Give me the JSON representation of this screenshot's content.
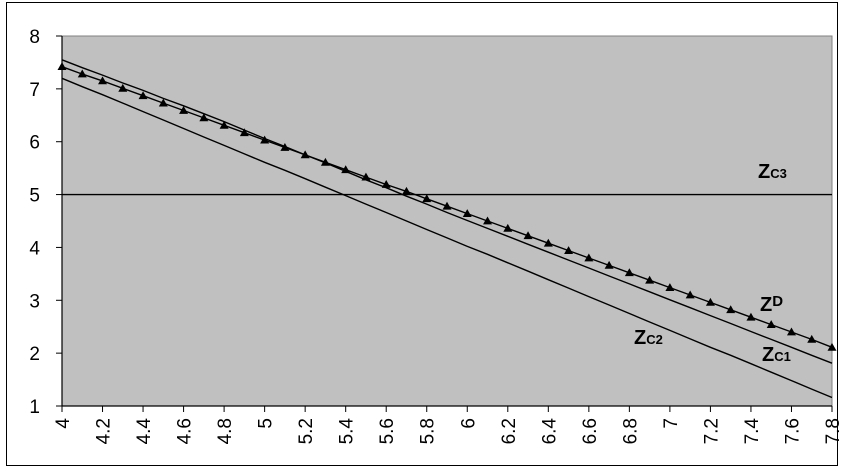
{
  "chart_data": {
    "type": "line",
    "title": "",
    "xlabel": "",
    "ylabel": "",
    "xlim": [
      4,
      7.8
    ],
    "ylim": [
      1,
      8
    ],
    "y_ticks": [
      "1",
      "2",
      "3",
      "4",
      "5",
      "6",
      "7",
      "8"
    ],
    "x_ticks": [
      "4",
      "4.2",
      "4.4",
      "4.6",
      "4.8",
      "5",
      "5.2",
      "5.4",
      "5.6",
      "5.8",
      "6",
      "6.2",
      "6.4",
      "6.6",
      "6.8",
      "7",
      "7.2",
      "7.4",
      "7.6",
      "7.8"
    ],
    "grid": false,
    "plot_background": "#C0C0C0",
    "line_color": "#000000",
    "x": [
      4.0,
      4.1,
      4.2,
      4.3,
      4.4,
      4.5,
      4.6,
      4.7,
      4.8,
      4.9,
      5.0,
      5.1,
      5.2,
      5.3,
      5.4,
      5.5,
      5.6,
      5.7,
      5.8,
      5.9,
      6.0,
      6.1,
      6.2,
      6.3,
      6.4,
      6.5,
      6.6,
      6.7,
      6.8,
      6.9,
      7.0,
      7.1,
      7.2,
      7.3,
      7.4,
      7.5,
      7.6,
      7.7,
      7.8
    ],
    "series": [
      {
        "name": "ZD",
        "label_main": "Z",
        "label_sub": "D",
        "marker": "triangle",
        "values": [
          7.42,
          7.28,
          7.15,
          7.01,
          6.87,
          6.73,
          6.59,
          6.45,
          6.31,
          6.17,
          6.03,
          5.89,
          5.75,
          5.61,
          5.47,
          5.33,
          5.19,
          5.06,
          4.92,
          4.78,
          4.64,
          4.5,
          4.36,
          4.22,
          4.08,
          3.94,
          3.8,
          3.66,
          3.52,
          3.38,
          3.24,
          3.1,
          2.96,
          2.82,
          2.68,
          2.54,
          2.4,
          2.26,
          2.11
        ]
      },
      {
        "name": "ZC1",
        "label_main": "Z",
        "label_sub": "C1",
        "marker": "none",
        "values": [
          7.55,
          7.4,
          7.26,
          7.11,
          6.97,
          6.82,
          6.68,
          6.53,
          6.38,
          6.22,
          6.06,
          5.91,
          5.75,
          5.6,
          5.44,
          5.28,
          5.13,
          4.97,
          4.82,
          4.66,
          4.51,
          4.36,
          4.21,
          4.06,
          3.91,
          3.76,
          3.61,
          3.46,
          3.31,
          3.16,
          3.01,
          2.86,
          2.71,
          2.56,
          2.41,
          2.26,
          2.11,
          1.96,
          1.81
        ]
      },
      {
        "name": "ZC2",
        "label_main": "Z",
        "label_sub": "C2",
        "marker": "none",
        "values": [
          7.2,
          7.04,
          6.89,
          6.73,
          6.57,
          6.41,
          6.25,
          6.09,
          5.93,
          5.77,
          5.61,
          5.46,
          5.3,
          5.14,
          4.98,
          4.82,
          4.66,
          4.5,
          4.34,
          4.18,
          4.02,
          3.87,
          3.71,
          3.55,
          3.39,
          3.23,
          3.07,
          2.91,
          2.75,
          2.59,
          2.43,
          2.27,
          2.11,
          1.96,
          1.8,
          1.64,
          1.48,
          1.32,
          1.16
        ]
      },
      {
        "name": "ZC3",
        "label_main": "Z",
        "label_sub": "C3",
        "marker": "none",
        "values": [
          5,
          5,
          5,
          5,
          5,
          5,
          5,
          5,
          5,
          5,
          5,
          5,
          5,
          5,
          5,
          5,
          5,
          5,
          5,
          5,
          5,
          5,
          5,
          5,
          5,
          5,
          5,
          5,
          5,
          5,
          5,
          5,
          5,
          5,
          5,
          5,
          5,
          5,
          5
        ]
      }
    ]
  }
}
